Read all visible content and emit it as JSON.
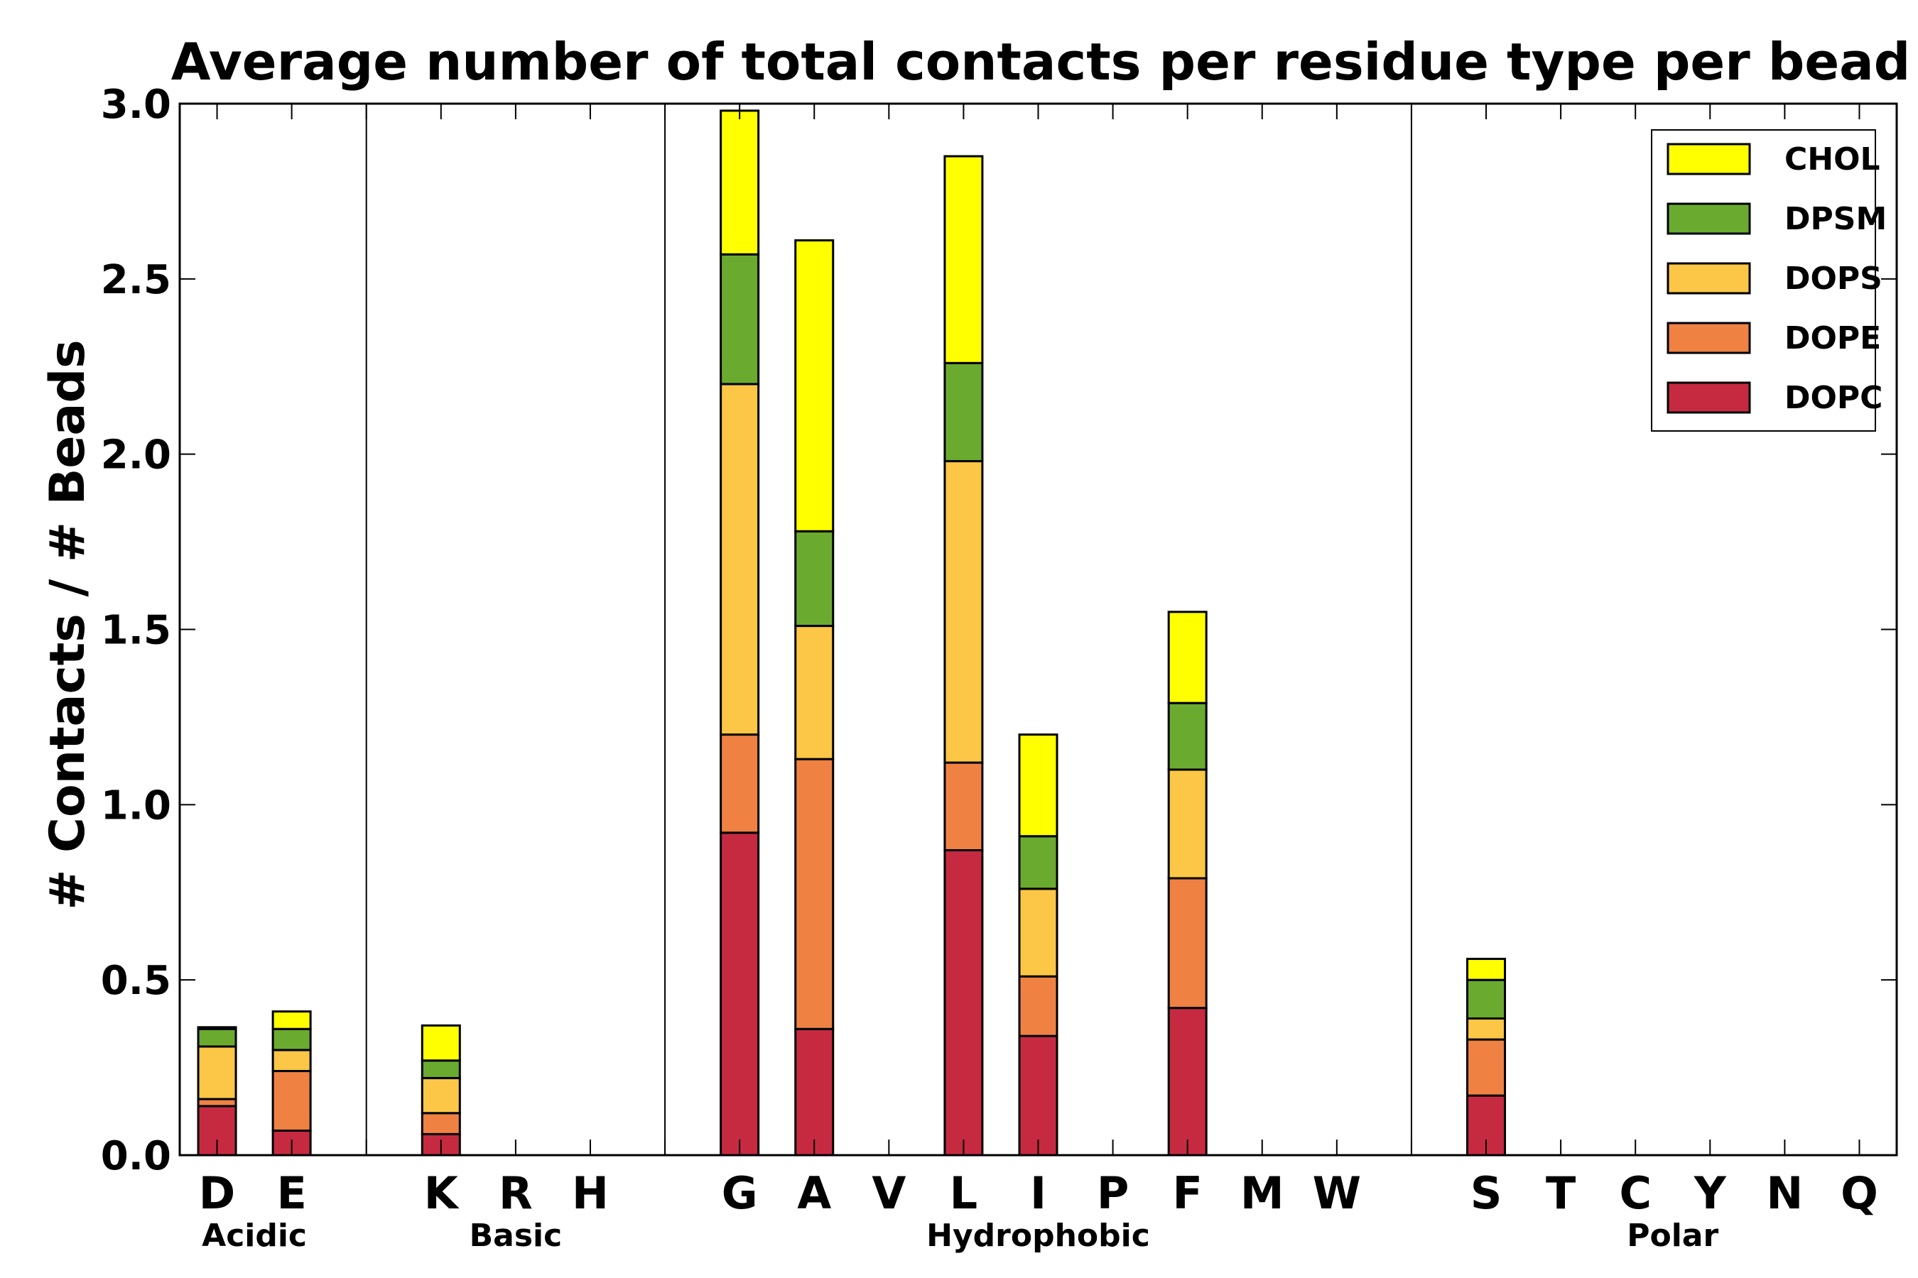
{
  "chart_data": {
    "type": "bar",
    "stacked": true,
    "title": "Average number of total contacts per residue type per bead",
    "xlabel": "",
    "ylabel": "# Contacts / # Beads",
    "ylim": [
      0,
      3.0
    ],
    "yticks": [
      "0.0",
      "0.5",
      "1.0",
      "1.5",
      "2.0",
      "2.5",
      "3.0"
    ],
    "categories": [
      "D",
      "E",
      "",
      "K",
      "R",
      "H",
      "",
      "G",
      "A",
      "V",
      "L",
      "I",
      "P",
      "F",
      "M",
      "W",
      "",
      "S",
      "T",
      "C",
      "Y",
      "N",
      "Q"
    ],
    "groups": [
      {
        "name": "Acidic",
        "members": [
          "D",
          "E"
        ]
      },
      {
        "name": "Basic",
        "members": [
          "K",
          "R",
          "H"
        ]
      },
      {
        "name": "Hydrophobic",
        "members": [
          "G",
          "A",
          "V",
          "L",
          "I",
          "P",
          "F",
          "M",
          "W"
        ]
      },
      {
        "name": "Polar",
        "members": [
          "S",
          "T",
          "C",
          "Y",
          "N",
          "Q"
        ]
      }
    ],
    "series": [
      {
        "name": "DOPC",
        "color": "#c62a41",
        "values": [
          0.14,
          0.07,
          0,
          0.06,
          0,
          0,
          0,
          0.92,
          0.36,
          0,
          0.87,
          0.34,
          0,
          0.42,
          0,
          0,
          0,
          0.17,
          0,
          0,
          0,
          0,
          0
        ]
      },
      {
        "name": "DOPE",
        "color": "#ef8143",
        "values": [
          0.02,
          0.17,
          0,
          0.06,
          0,
          0,
          0,
          0.28,
          0.77,
          0,
          0.25,
          0.17,
          0,
          0.37,
          0,
          0,
          0,
          0.16,
          0,
          0,
          0,
          0,
          0
        ]
      },
      {
        "name": "DOPS",
        "color": "#fcc646",
        "values": [
          0.15,
          0.06,
          0,
          0.1,
          0,
          0,
          0,
          1.0,
          0.38,
          0,
          0.86,
          0.25,
          0,
          0.31,
          0,
          0,
          0,
          0.06,
          0,
          0,
          0,
          0,
          0
        ]
      },
      {
        "name": "DPSM",
        "color": "#6aab2f",
        "values": [
          0.05,
          0.06,
          0,
          0.05,
          0,
          0,
          0,
          0.37,
          0.27,
          0,
          0.28,
          0.15,
          0,
          0.19,
          0,
          0,
          0,
          0.11,
          0,
          0,
          0,
          0,
          0
        ]
      },
      {
        "name": "CHOL",
        "color": "#ffff00",
        "values": [
          0.005,
          0.05,
          0,
          0.1,
          0,
          0,
          0,
          0.41,
          0.83,
          0,
          0.59,
          0.29,
          0,
          0.26,
          0,
          0,
          0,
          0.06,
          0,
          0,
          0,
          0,
          0
        ]
      }
    ],
    "legend": {
      "position": "top-right",
      "order": [
        "CHOL",
        "DPSM",
        "DOPS",
        "DOPE",
        "DOPC"
      ]
    },
    "grid": false
  }
}
